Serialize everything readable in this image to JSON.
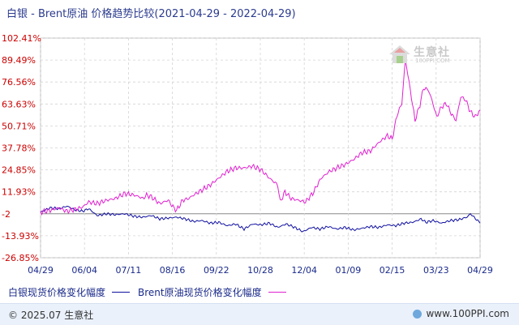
{
  "title": "白银 - Brent原油 价格趋势比较(2021-04-29 - 2022-04-29)",
  "legend": {
    "series1": "白银现货价格变化幅度",
    "series2": "Brent原油现货价格变化幅度"
  },
  "footer": {
    "copyright": "© 2025.07 生意社",
    "site": "www.100PPI.com"
  },
  "watermark": {
    "name": "生意社",
    "sub": "100PPI.COM"
  },
  "colors": {
    "silver": "#1010a0",
    "brent": "#e020d0",
    "axis_label": "#cc0000",
    "grid": "#d4d4d4",
    "zero_line": "#888888"
  },
  "chart_data": {
    "type": "line",
    "title": "白银 - Brent原油 价格趋势比较(2021-04-29 - 2022-04-29)",
    "xlabel": "",
    "ylabel": "",
    "ylim": [
      -26.85,
      102.41
    ],
    "y_ticks": [
      "102.41%",
      "89.49%",
      "76.56%",
      "63.63%",
      "50.71%",
      "37.78%",
      "24.85%",
      "11.93%",
      "-2",
      "-13.93%",
      "-26.85%"
    ],
    "x_ticks": [
      "04/29",
      "06/04",
      "07/11",
      "08/16",
      "09/22",
      "10/28",
      "12/04",
      "01/09",
      "02/15",
      "03/23",
      "04/29"
    ],
    "x_range_days": [
      0,
      365
    ],
    "grid": true,
    "legend_position": "bottom",
    "series": [
      {
        "name": "白银现货价格变化幅度",
        "points": [
          [
            0,
            0
          ],
          [
            8,
            2.5
          ],
          [
            15,
            2
          ],
          [
            22,
            3.5
          ],
          [
            28,
            1.5
          ],
          [
            35,
            0.5
          ],
          [
            40,
            2
          ],
          [
            47,
            -2
          ],
          [
            55,
            -1
          ],
          [
            62,
            -1.5
          ],
          [
            70,
            -1
          ],
          [
            78,
            -2.5
          ],
          [
            85,
            -3
          ],
          [
            92,
            -2
          ],
          [
            99,
            -4
          ],
          [
            106,
            -3.5
          ],
          [
            113,
            -3
          ],
          [
            120,
            -4
          ],
          [
            127,
            -5.5
          ],
          [
            134,
            -5
          ],
          [
            141,
            -6.5
          ],
          [
            148,
            -6
          ],
          [
            155,
            -8
          ],
          [
            162,
            -7
          ],
          [
            169,
            -10
          ],
          [
            176,
            -7
          ],
          [
            183,
            -7.5
          ],
          [
            190,
            -6.5
          ],
          [
            197,
            -9
          ],
          [
            204,
            -7
          ],
          [
            211,
            -9
          ],
          [
            218,
            -11.5
          ],
          [
            225,
            -9
          ],
          [
            232,
            -10
          ],
          [
            239,
            -8.5
          ],
          [
            246,
            -10
          ],
          [
            253,
            -9
          ],
          [
            260,
            -10.5
          ],
          [
            267,
            -9.5
          ],
          [
            274,
            -8.5
          ],
          [
            281,
            -9
          ],
          [
            288,
            -7.5
          ],
          [
            295,
            -8
          ],
          [
            302,
            -6.5
          ],
          [
            309,
            -6
          ],
          [
            316,
            -4
          ],
          [
            320,
            -6
          ],
          [
            326,
            -5
          ],
          [
            333,
            -6.5
          ],
          [
            340,
            -5
          ],
          [
            347,
            -4.5
          ],
          [
            354,
            -3
          ],
          [
            357,
            -1
          ],
          [
            360,
            -3
          ],
          [
            365,
            -6.5
          ]
        ]
      },
      {
        "name": "Brent原油现货价格变化幅度",
        "points": [
          [
            0,
            0
          ],
          [
            8,
            1
          ],
          [
            15,
            2.5
          ],
          [
            22,
            0.5
          ],
          [
            28,
            1.5
          ],
          [
            35,
            3
          ],
          [
            40,
            6
          ],
          [
            47,
            5
          ],
          [
            55,
            7
          ],
          [
            62,
            8
          ],
          [
            70,
            11
          ],
          [
            78,
            10
          ],
          [
            82,
            9
          ],
          [
            85,
            8
          ],
          [
            88,
            10
          ],
          [
            92,
            9
          ],
          [
            99,
            5
          ],
          [
            106,
            7
          ],
          [
            110,
            3
          ],
          [
            113,
            1
          ],
          [
            118,
            7
          ],
          [
            123,
            8
          ],
          [
            127,
            10
          ],
          [
            134,
            13
          ],
          [
            141,
            16
          ],
          [
            148,
            20
          ],
          [
            155,
            24
          ],
          [
            162,
            26
          ],
          [
            169,
            26
          ],
          [
            176,
            27
          ],
          [
            183,
            25
          ],
          [
            190,
            20
          ],
          [
            197,
            16
          ],
          [
            199,
            6
          ],
          [
            203,
            12
          ],
          [
            208,
            8
          ],
          [
            214,
            7
          ],
          [
            220,
            6
          ],
          [
            226,
            11
          ],
          [
            233,
            20
          ],
          [
            240,
            24
          ],
          [
            246,
            26
          ],
          [
            253,
            28
          ],
          [
            260,
            31
          ],
          [
            267,
            35
          ],
          [
            274,
            36
          ],
          [
            281,
            41
          ],
          [
            288,
            45
          ],
          [
            292,
            43
          ],
          [
            296,
            57
          ],
          [
            300,
            64
          ],
          [
            303,
            90
          ],
          [
            307,
            72
          ],
          [
            311,
            54
          ],
          [
            315,
            63
          ],
          [
            318,
            73
          ],
          [
            322,
            72
          ],
          [
            325,
            66
          ],
          [
            329,
            56
          ],
          [
            333,
            62
          ],
          [
            337,
            64
          ],
          [
            341,
            58
          ],
          [
            345,
            54
          ],
          [
            349,
            68
          ],
          [
            353,
            66
          ],
          [
            357,
            59
          ],
          [
            361,
            56
          ],
          [
            365,
            60
          ]
        ]
      }
    ]
  }
}
